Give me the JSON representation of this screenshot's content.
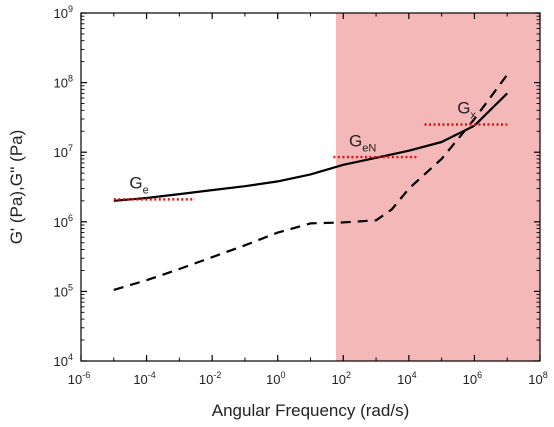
{
  "chart_data": {
    "type": "line",
    "title": "",
    "xlabel": "Angular Frequency (rad/s)",
    "ylabel": "G' (Pa),G'' (Pa)",
    "x_scale": "log",
    "y_scale": "log",
    "xlim": [
      1e-06,
      100000000.0
    ],
    "ylim": [
      10000.0,
      1000000000.0
    ],
    "x_ticks": [
      {
        "base": "10",
        "exp": "-6",
        "value": 1e-06
      },
      {
        "base": "10",
        "exp": "-4",
        "value": 0.0001
      },
      {
        "base": "10",
        "exp": "-2",
        "value": 0.01
      },
      {
        "base": "10",
        "exp": "0",
        "value": 1
      },
      {
        "base": "10",
        "exp": "2",
        "value": 100.0
      },
      {
        "base": "10",
        "exp": "4",
        "value": 10000.0
      },
      {
        "base": "10",
        "exp": "6",
        "value": 1000000.0
      },
      {
        "base": "10",
        "exp": "8",
        "value": 100000000.0
      }
    ],
    "y_ticks": [
      {
        "base": "10",
        "exp": "4",
        "value": 10000.0
      },
      {
        "base": "10",
        "exp": "5",
        "value": 100000.0
      },
      {
        "base": "10",
        "exp": "6",
        "value": 1000000.0
      },
      {
        "base": "10",
        "exp": "7",
        "value": 10000000.0
      },
      {
        "base": "10",
        "exp": "8",
        "value": 100000000.0
      },
      {
        "base": "10",
        "exp": "9",
        "value": 1000000000.0
      }
    ],
    "grid": false,
    "shaded_region": {
      "x_from": 60,
      "x_to": 100000000.0,
      "color": "#f4b8b8"
    },
    "series": [
      {
        "style": "solid",
        "color": "#000000",
        "x": [
          1e-05,
          0.0001,
          0.001,
          0.01,
          0.1,
          1,
          10,
          100,
          1000,
          10000.0,
          100000.0,
          1000000.0,
          10000000.0
        ],
        "y": [
          2000000.0,
          2200000.0,
          2500000.0,
          2850000.0,
          3250000.0,
          3800000.0,
          4800000.0,
          6600000.0,
          8300000.0,
          10500000.0,
          14000000.0,
          24000000.0,
          70000000.0
        ]
      },
      {
        "style": "dashed",
        "color": "#000000",
        "x": [
          1e-05,
          0.0001,
          0.001,
          0.01,
          0.1,
          1,
          10,
          100,
          1000,
          3000,
          10000.0,
          100000.0,
          1000000.0,
          10000000.0
        ],
        "y": [
          105000.0,
          145000.0,
          210000.0,
          310000.0,
          460000.0,
          700000.0,
          950000.0,
          980000.0,
          1050000.0,
          1500000.0,
          3000000.0,
          8000000.0,
          30000000.0,
          130000000.0
        ]
      }
    ],
    "reference_lines": [
      {
        "label": "e",
        "x_from": 1e-05,
        "x_to": 0.003,
        "y": 2100000.0,
        "color": "#e01010",
        "style": "dotted"
      },
      {
        "label": "eN",
        "x_from": 50,
        "x_to": 20000.0,
        "y": 8500000.0,
        "color": "#e01010",
        "style": "dotted"
      },
      {
        "label": "x",
        "x_from": 30000.0,
        "x_to": 10000000.0,
        "y": 25000000.0,
        "color": "#e01010",
        "style": "dotted"
      }
    ],
    "annotations": [
      {
        "base": "G",
        "sub": "e",
        "x": 3e-05,
        "y": 3000000.0
      },
      {
        "base": "G",
        "sub": "eN",
        "x": 150,
        "y": 12000000.0
      },
      {
        "base": "G",
        "sub": "x",
        "x": 300000.0,
        "y": 36000000.0
      }
    ]
  }
}
